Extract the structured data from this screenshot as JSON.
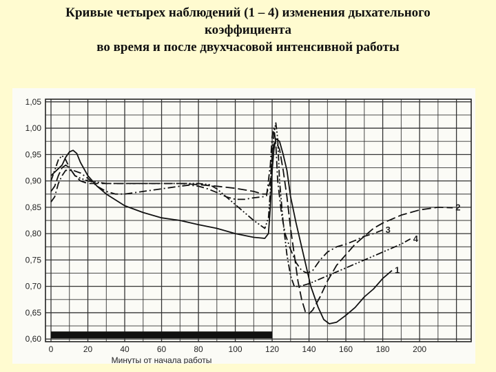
{
  "title": {
    "line1": "Кривые четырех наблюдений (1 – 4) изменения дыхательного",
    "line2": "коэффициента",
    "line3": "во время и после двухчасовой интенсивной работы"
  },
  "chart_data": {
    "type": "line",
    "xlabel": "Минуты от начала работы",
    "ylabel": "",
    "xlim": [
      -3,
      228
    ],
    "ylim": [
      0.595,
      1.055
    ],
    "x_ticks": [
      0,
      20,
      40,
      60,
      80,
      100,
      120,
      140,
      160,
      180,
      200
    ],
    "y_ticks": [
      0.6,
      0.65,
      0.7,
      0.75,
      0.8,
      0.85,
      0.9,
      0.95,
      1.0,
      1.05
    ],
    "y_tick_labels": [
      "0,60",
      "0,65",
      "0,70",
      "0,75",
      "0,80",
      "0,85",
      "0,90",
      "0,95",
      "1,00",
      "1,05"
    ],
    "grid": true,
    "work_period": [
      0,
      120
    ],
    "series": [
      {
        "name": "1",
        "dash": "solid",
        "points": [
          [
            0,
            0.91
          ],
          [
            3,
            0.92
          ],
          [
            6,
            0.93
          ],
          [
            8,
            0.945
          ],
          [
            10,
            0.955
          ],
          [
            12,
            0.958
          ],
          [
            14,
            0.952
          ],
          [
            16,
            0.935
          ],
          [
            20,
            0.91
          ],
          [
            25,
            0.89
          ],
          [
            30,
            0.875
          ],
          [
            40,
            0.853
          ],
          [
            50,
            0.84
          ],
          [
            60,
            0.83
          ],
          [
            70,
            0.825
          ],
          [
            80,
            0.817
          ],
          [
            90,
            0.81
          ],
          [
            100,
            0.8
          ],
          [
            110,
            0.793
          ],
          [
            116,
            0.791
          ],
          [
            118,
            0.8
          ],
          [
            119,
            0.85
          ],
          [
            120,
            0.92
          ],
          [
            121,
            0.96
          ],
          [
            122,
            0.98
          ],
          [
            124,
            0.975
          ],
          [
            126,
            0.95
          ],
          [
            128,
            0.92
          ],
          [
            130,
            0.87
          ],
          [
            133,
            0.82
          ],
          [
            137,
            0.76
          ],
          [
            141,
            0.7
          ],
          [
            145,
            0.66
          ],
          [
            148,
            0.637
          ],
          [
            151,
            0.629
          ],
          [
            155,
            0.632
          ],
          [
            160,
            0.645
          ],
          [
            165,
            0.66
          ],
          [
            170,
            0.68
          ],
          [
            175,
            0.695
          ],
          [
            180,
            0.715
          ],
          [
            185,
            0.73
          ]
        ]
      },
      {
        "name": "2",
        "dash": "longdash",
        "points": [
          [
            0,
            0.88
          ],
          [
            2,
            0.89
          ],
          [
            4,
            0.91
          ],
          [
            6,
            0.925
          ],
          [
            8,
            0.93
          ],
          [
            10,
            0.925
          ],
          [
            13,
            0.91
          ],
          [
            16,
            0.9
          ],
          [
            20,
            0.895
          ],
          [
            30,
            0.895
          ],
          [
            40,
            0.895
          ],
          [
            50,
            0.895
          ],
          [
            60,
            0.895
          ],
          [
            70,
            0.895
          ],
          [
            80,
            0.893
          ],
          [
            90,
            0.89
          ],
          [
            100,
            0.886
          ],
          [
            110,
            0.88
          ],
          [
            115,
            0.875
          ],
          [
            117,
            0.875
          ],
          [
            119,
            0.9
          ],
          [
            120,
            0.95
          ],
          [
            121,
            0.97
          ],
          [
            122,
            0.975
          ],
          [
            124,
            0.96
          ],
          [
            126,
            0.92
          ],
          [
            128,
            0.87
          ],
          [
            130,
            0.81
          ],
          [
            132,
            0.76
          ],
          [
            134,
            0.71
          ],
          [
            136,
            0.675
          ],
          [
            138,
            0.652
          ],
          [
            140,
            0.648
          ],
          [
            142,
            0.655
          ],
          [
            146,
            0.68
          ],
          [
            150,
            0.71
          ],
          [
            155,
            0.74
          ],
          [
            160,
            0.76
          ],
          [
            165,
            0.78
          ],
          [
            170,
            0.795
          ],
          [
            175,
            0.81
          ],
          [
            180,
            0.82
          ],
          [
            190,
            0.835
          ],
          [
            200,
            0.845
          ],
          [
            210,
            0.85
          ],
          [
            218,
            0.849
          ]
        ]
      },
      {
        "name": "3",
        "dash": "dashdot",
        "points": [
          [
            0,
            0.86
          ],
          [
            2,
            0.87
          ],
          [
            4,
            0.895
          ],
          [
            6,
            0.91
          ],
          [
            8,
            0.92
          ],
          [
            12,
            0.92
          ],
          [
            16,
            0.915
          ],
          [
            20,
            0.905
          ],
          [
            25,
            0.89
          ],
          [
            30,
            0.88
          ],
          [
            35,
            0.875
          ],
          [
            40,
            0.875
          ],
          [
            50,
            0.88
          ],
          [
            60,
            0.885
          ],
          [
            70,
            0.89
          ],
          [
            75,
            0.892
          ],
          [
            80,
            0.89
          ],
          [
            85,
            0.885
          ],
          [
            90,
            0.878
          ],
          [
            95,
            0.87
          ],
          [
            100,
            0.865
          ],
          [
            105,
            0.865
          ],
          [
            110,
            0.868
          ],
          [
            115,
            0.87
          ],
          [
            117,
            0.872
          ],
          [
            119,
            0.93
          ],
          [
            120,
            0.985
          ],
          [
            121,
            1.0
          ],
          [
            122,
            0.97
          ],
          [
            123,
            0.9
          ],
          [
            125,
            0.84
          ],
          [
            127,
            0.8
          ],
          [
            130,
            0.77
          ],
          [
            133,
            0.745
          ],
          [
            136,
            0.73
          ],
          [
            139,
            0.725
          ],
          [
            142,
            0.73
          ],
          [
            146,
            0.75
          ],
          [
            150,
            0.765
          ],
          [
            155,
            0.775
          ],
          [
            160,
            0.78
          ],
          [
            165,
            0.787
          ],
          [
            170,
            0.795
          ],
          [
            175,
            0.8
          ],
          [
            180,
            0.807
          ]
        ]
      },
      {
        "name": "4",
        "dash": "dashdotdot",
        "points": [
          [
            0,
            0.9
          ],
          [
            2,
            0.92
          ],
          [
            4,
            0.94
          ],
          [
            6,
            0.948
          ],
          [
            8,
            0.94
          ],
          [
            10,
            0.925
          ],
          [
            13,
            0.91
          ],
          [
            16,
            0.905
          ],
          [
            20,
            0.9
          ],
          [
            30,
            0.895
          ],
          [
            40,
            0.895
          ],
          [
            50,
            0.895
          ],
          [
            60,
            0.895
          ],
          [
            70,
            0.895
          ],
          [
            80,
            0.895
          ],
          [
            86,
            0.893
          ],
          [
            90,
            0.885
          ],
          [
            95,
            0.87
          ],
          [
            100,
            0.855
          ],
          [
            105,
            0.84
          ],
          [
            110,
            0.825
          ],
          [
            114,
            0.815
          ],
          [
            116,
            0.81
          ],
          [
            118,
            0.83
          ],
          [
            119,
            0.88
          ],
          [
            120,
            0.95
          ],
          [
            121,
            0.99
          ],
          [
            122,
            1.01
          ],
          [
            123,
            0.98
          ],
          [
            124,
            0.9
          ],
          [
            126,
            0.82
          ],
          [
            128,
            0.76
          ],
          [
            130,
            0.72
          ],
          [
            132,
            0.7
          ],
          [
            135,
            0.7
          ],
          [
            140,
            0.705
          ],
          [
            150,
            0.72
          ],
          [
            160,
            0.735
          ],
          [
            170,
            0.75
          ],
          [
            180,
            0.765
          ],
          [
            190,
            0.78
          ],
          [
            195,
            0.79
          ]
        ]
      }
    ]
  }
}
